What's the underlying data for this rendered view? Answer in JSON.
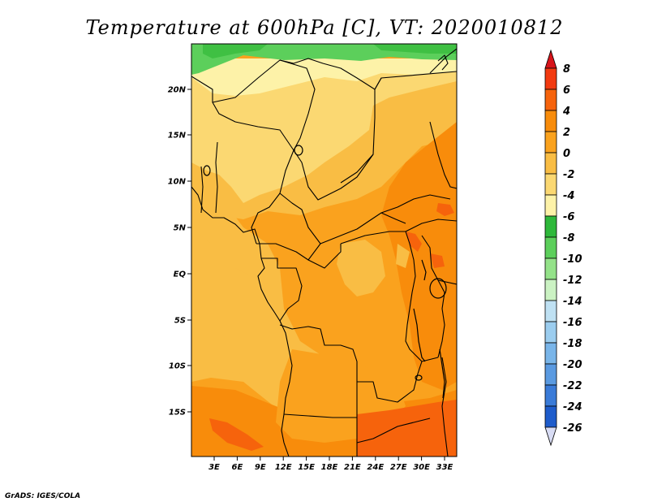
{
  "title": "Temperature at 600hPa [C], VT: 2020010812",
  "credit": "GrADS: IGES/COLA",
  "map": {
    "lat_labels": [
      "20N",
      "15N",
      "10N",
      "5N",
      "EQ",
      "5S",
      "10S",
      "15S"
    ],
    "lon_labels": [
      "3E",
      "6E",
      "9E",
      "12E",
      "15E",
      "18E",
      "21E",
      "24E",
      "27E",
      "30E",
      "33E"
    ]
  },
  "colorbar": {
    "labels": [
      "8",
      "6",
      "4",
      "2",
      "0",
      "-2",
      "-4",
      "-6",
      "-8",
      "-10",
      "-12",
      "-14",
      "-16",
      "-18",
      "-20",
      "-22",
      "-24",
      "-26"
    ],
    "colors": {
      "top_triangle": "#d7141a",
      "bins": [
        "#f23a10",
        "#f6630c",
        "#f88c0b",
        "#faa21e",
        "#f9bd44",
        "#fbd872",
        "#fdf2a8",
        "#2eb83a",
        "#5ccf5b",
        "#94e289",
        "#cbf2c3",
        "#bfe1f3",
        "#9bcdef",
        "#79b5e9",
        "#5a9ae1",
        "#3a7bd8",
        "#1e5ccb",
        "#0c3eb3",
        "#0a1f8a"
      ],
      "bottom_triangle": "#d8dcf4"
    }
  },
  "field_colors": {
    "green_dark": "#3fc043",
    "green_light": "#5ccf5b",
    "pale_yellow": "#fdf2a8",
    "yellow": "#fbd872",
    "light_orange": "#f9bd44",
    "orange": "#faa21e",
    "deep_orange": "#f88c0b",
    "red_orange": "#f6630c"
  }
}
